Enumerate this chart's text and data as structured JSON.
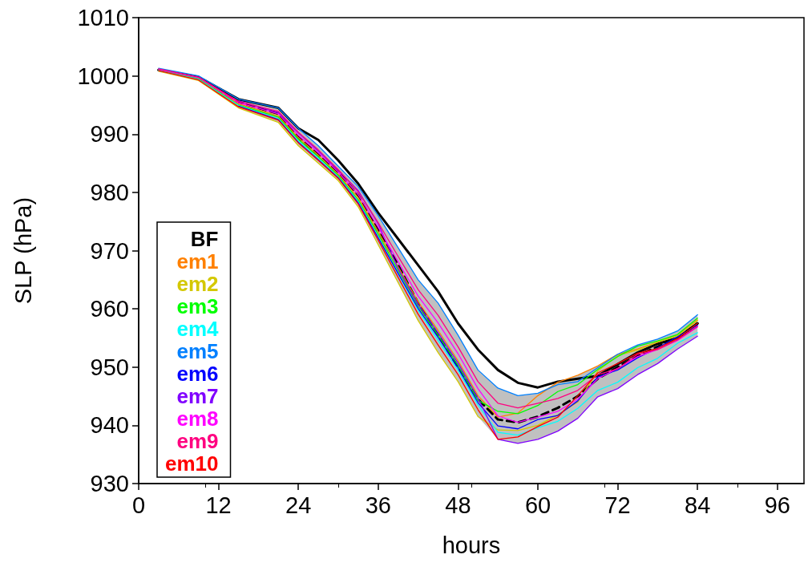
{
  "chart_data": {
    "type": "line",
    "xlabel": "hours",
    "ylabel": "SLP (hPa)",
    "x": [
      3,
      9,
      15,
      21,
      24,
      27,
      30,
      33,
      36,
      39,
      42,
      45,
      48,
      51,
      54,
      57,
      60,
      63,
      66,
      69,
      72,
      75,
      78,
      81,
      84
    ],
    "xlim": [
      0,
      100
    ],
    "xticks": [
      0,
      12,
      24,
      36,
      48,
      60,
      72,
      84,
      96
    ],
    "ylim": [
      930,
      1010
    ],
    "yticks": [
      930,
      940,
      950,
      960,
      970,
      980,
      990,
      1000,
      1010
    ],
    "grid": false,
    "legend": "bottom left",
    "marker": "none",
    "series": [
      {
        "type": "line",
        "color": "#000000",
        "line_style": "dashed",
        "values": [
          1001,
          999.5,
          995.5,
          993.5,
          989.5,
          986.5,
          983.5,
          979.5,
          973.5,
          967.5,
          961,
          955.5,
          950,
          944.5,
          941,
          940.5,
          941.5,
          943,
          945,
          948,
          950,
          952,
          953.5,
          955,
          957.5
        ],
        "lower": [
          1000.8,
          999.2,
          994.5,
          992,
          988,
          985,
          982,
          977.5,
          971,
          964.5,
          958,
          952.5,
          947.5,
          941.5,
          937.6,
          936.9,
          937.6,
          939,
          941.2,
          944.9,
          946.3,
          948.7,
          950.6,
          953.1,
          955.3
        ],
        "upper": [
          1001.3,
          1000,
          996,
          994.5,
          991,
          988,
          984.5,
          981,
          976,
          970.5,
          965,
          961,
          955.5,
          949.5,
          946.4,
          945.1,
          945.5,
          947.4,
          948.6,
          950.2,
          952.2,
          953.8,
          954.8,
          956.2,
          959
        ]
      },
      {
        "name": "BF",
        "color": "#000000",
        "values": [
          1001,
          999.8,
          996,
          994.5,
          991,
          989,
          985.5,
          981.5,
          976.5,
          972,
          967.5,
          963,
          957.5,
          953,
          949.5,
          947.3,
          946.5,
          947.5,
          948,
          948.5,
          950.5,
          952.5,
          954,
          955,
          957.5
        ]
      },
      {
        "name": "em1",
        "color": "#ff8000",
        "values": [
          1001,
          999.6,
          995.2,
          993.1,
          989.4,
          986.4,
          983.1,
          979.1,
          973.3,
          967.2,
          961.2,
          956.3,
          951.1,
          945.1,
          941.4,
          942.1,
          945.1,
          947.4,
          948.6,
          950.2,
          952.2,
          953.1,
          954.3,
          955.5,
          958.1
        ]
      },
      {
        "name": "em2",
        "color": "#d4c800",
        "values": [
          1000.8,
          999.2,
          994.5,
          992,
          988,
          985,
          982,
          977.5,
          971,
          964.5,
          958,
          952.5,
          947.5,
          941.5,
          939.2,
          939.1,
          940,
          941.8,
          944,
          949.3,
          952,
          952.9,
          954.3,
          955.4,
          958
        ]
      },
      {
        "name": "em3",
        "color": "#00ff00",
        "values": [
          1001,
          999.5,
          995,
          992.9,
          989.1,
          986.1,
          982.9,
          978.7,
          972.8,
          966.6,
          960.5,
          955.5,
          950.3,
          944.3,
          942.4,
          942,
          943.4,
          945.8,
          947,
          949.6,
          951.8,
          953.6,
          954.5,
          955.6,
          958.4
        ]
      },
      {
        "name": "em4",
        "color": "#00ffff",
        "values": [
          1000.9,
          999.4,
          994.9,
          992.6,
          988.8,
          985.8,
          982.6,
          978.4,
          972.3,
          966,
          959.8,
          954.6,
          949.5,
          943.5,
          938.8,
          938.3,
          939.6,
          940.7,
          942.9,
          946,
          947.4,
          949.9,
          951.5,
          954.1,
          955.9
        ]
      },
      {
        "name": "em5",
        "color": "#0080ff",
        "values": [
          1001.3,
          1000,
          996,
          994.5,
          991,
          988,
          984.5,
          981,
          976,
          970.5,
          965,
          961,
          955.5,
          949.5,
          946.4,
          945.1,
          945.5,
          947,
          947.5,
          949.9,
          952.2,
          953.8,
          954.8,
          956.2,
          959
        ]
      },
      {
        "name": "em6",
        "color": "#0000ff",
        "values": [
          null,
          null,
          994.8,
          992.5,
          988.6,
          985.6,
          982.5,
          978.2,
          972.2,
          966.1,
          960.1,
          955.1,
          949.9,
          943.9,
          939.9,
          939.4,
          941,
          941.7,
          944.2,
          948.3,
          949.5,
          951.6,
          953.3,
          955.2,
          957.2
        ]
      },
      {
        "name": "em7",
        "color": "#8000ff",
        "values": [
          null,
          null,
          995.7,
          993.7,
          990.2,
          987.1,
          983.8,
          980.3,
          974.6,
          966.9,
          960.8,
          955.9,
          950.7,
          944.7,
          937.6,
          936.9,
          937.6,
          939,
          941.2,
          944.9,
          946.3,
          948.7,
          950.6,
          953.1,
          955.3
        ]
      },
      {
        "name": "em8",
        "color": "#ff00ff",
        "values": [
          1001.1,
          999.7,
          995.4,
          993.5,
          989.8,
          986.8,
          983.5,
          979.6,
          974,
          968.1,
          962.2,
          957.6,
          952.3,
          946.3,
          941.6,
          940.5,
          941.4,
          942.4,
          944.5,
          948,
          949.8,
          951.8,
          953,
          954.6,
          956.9
        ]
      },
      {
        "name": "em9",
        "color": "#ff0080",
        "values": [
          1001.2,
          999.8,
          995.6,
          993.9,
          990.3,
          987.3,
          983.9,
          980.1,
          974.8,
          969,
          963.3,
          958.9,
          953.5,
          947.5,
          943.8,
          943,
          943.8,
          944.6,
          946,
          948.7,
          949.7,
          952.2,
          953,
          954.7,
          957
        ]
      },
      {
        "name": "em10",
        "color": "#ff0000",
        "values": [
          1000.9,
          999.3,
          994.7,
          992.4,
          988.5,
          985.5,
          982.4,
          978,
          971.8,
          965.4,
          959.1,
          953.8,
          948.7,
          942.7,
          937.6,
          938,
          939.8,
          941.4,
          945.1,
          949,
          950.6,
          952.4,
          953.2,
          954.9,
          957.5
        ]
      }
    ]
  }
}
